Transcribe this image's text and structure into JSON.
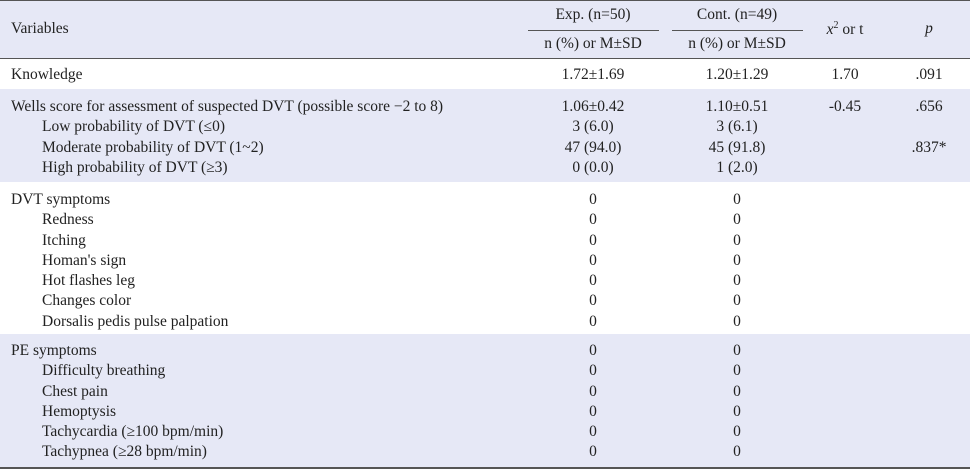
{
  "header": {
    "variables": "Variables",
    "exp_group": "Exp. (n=50)",
    "cont_group": "Cont. (n=49)",
    "exp_sub": "n (%) or M±SD",
    "cont_sub": "n (%) or M±SD",
    "stat_pre": "x",
    "stat_sup": "2",
    "stat_post": " or t",
    "p": "p"
  },
  "knowledge": {
    "label": "Knowledge",
    "exp": "1.72±1.69",
    "cont": "1.20±1.29",
    "stat": "1.70",
    "p": ".091"
  },
  "wells": {
    "label": "Wells score for assessment of suspected DVT (possible score −2 to 8)",
    "exp": "1.06±0.42",
    "cont": "1.10±0.51",
    "stat": "-0.45",
    "p": ".656",
    "rows": [
      {
        "label": "Low probability of DVT (≤0)",
        "exp": "3 (6.0)",
        "cont": "3 (6.1)",
        "p": ""
      },
      {
        "label": "Moderate probability of DVT (1~2)",
        "exp": "47 (94.0)",
        "cont": "45 (91.8)",
        "p": ".837*"
      },
      {
        "label": "High probability of DVT (≥3)",
        "exp": "0 (0.0)",
        "cont": "1 (2.0)",
        "p": ""
      }
    ]
  },
  "dvt": {
    "label": "DVT symptoms",
    "exp": "0",
    "cont": "0",
    "rows": [
      {
        "label": "Redness",
        "exp": "0",
        "cont": "0"
      },
      {
        "label": "Itching",
        "exp": "0",
        "cont": "0"
      },
      {
        "label": "Homan's sign",
        "exp": "0",
        "cont": "0"
      },
      {
        "label": "Hot flashes leg",
        "exp": "0",
        "cont": "0"
      },
      {
        "label": "Changes color",
        "exp": "0",
        "cont": "0"
      },
      {
        "label": "Dorsalis pedis pulse palpation",
        "exp": "0",
        "cont": "0"
      }
    ]
  },
  "pe": {
    "label": "PE symptoms",
    "exp": "0",
    "cont": "0",
    "rows": [
      {
        "label": "Difficulty breathing",
        "exp": "0",
        "cont": "0"
      },
      {
        "label": "Chest pain",
        "exp": "0",
        "cont": "0"
      },
      {
        "label": "Hemoptysis",
        "exp": "0",
        "cont": "0"
      },
      {
        "label": "Tachycardia (≥100 bpm/min)",
        "exp": "0",
        "cont": "0"
      },
      {
        "label": "Tachypnea (≥28 bpm/min)",
        "exp": "0",
        "cont": "0"
      }
    ]
  }
}
